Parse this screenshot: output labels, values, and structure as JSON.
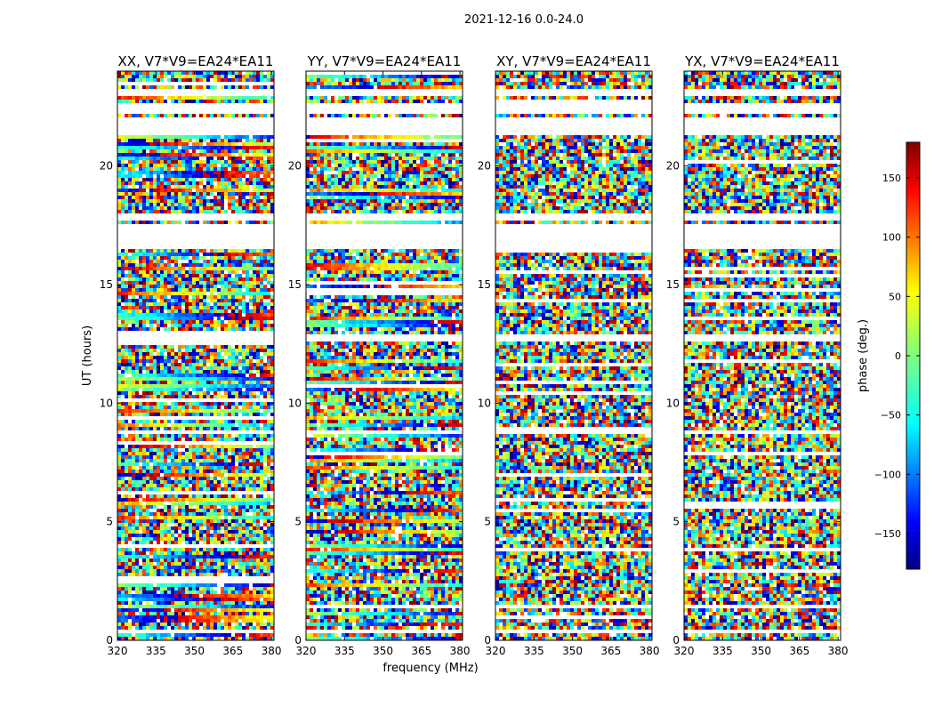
{
  "figure": {
    "suptitle": "2021-12-16 0.0-24.0",
    "xlabel": "frequency (MHz)",
    "ylabel": "UT (hours)"
  },
  "chart_data": {
    "type": "heatmap",
    "title": "2021-12-16 0.0-24.0",
    "xlabel": "frequency (MHz)",
    "ylabel": "UT (hours)",
    "xlim": [
      320,
      381
    ],
    "ylim": [
      0,
      24
    ],
    "x_ticks": [
      320,
      335,
      350,
      365,
      380
    ],
    "y_ticks": [
      0,
      5,
      10,
      15,
      20
    ],
    "panels": [
      {
        "title": "XX, V7*V9=EA24*EA11",
        "coherent": true
      },
      {
        "title": "YY, V7*V9=EA24*EA11",
        "coherent": true
      },
      {
        "title": "XY, V7*V9=EA24*EA11",
        "coherent": false
      },
      {
        "title": "YX, V7*V9=EA24*EA11",
        "coherent": false
      }
    ],
    "flagged_time_ranges_hours": [
      [
        23.0,
        23.3
      ],
      [
        22.2,
        22.65
      ],
      [
        21.3,
        22.0
      ],
      [
        17.7,
        18.0
      ],
      [
        16.45,
        17.55
      ],
      [
        12.6,
        12.85
      ],
      [
        8.75,
        8.9
      ],
      [
        0.3,
        0.42
      ]
    ],
    "phase_colorbar": {
      "label": "phase (deg.)",
      "range": [
        -180,
        180
      ],
      "ticks": [
        150,
        100,
        50,
        0,
        -50,
        -100,
        -150
      ],
      "tick_labels": [
        "150",
        "100",
        "50",
        "0",
        "−50",
        "−100",
        "−150"
      ]
    }
  },
  "colormap": [
    "#00007f",
    "#0000ff",
    "#007fff",
    "#00ffff",
    "#7fff7f",
    "#ffff00",
    "#ff7f00",
    "#ff0000",
    "#7f0000"
  ]
}
